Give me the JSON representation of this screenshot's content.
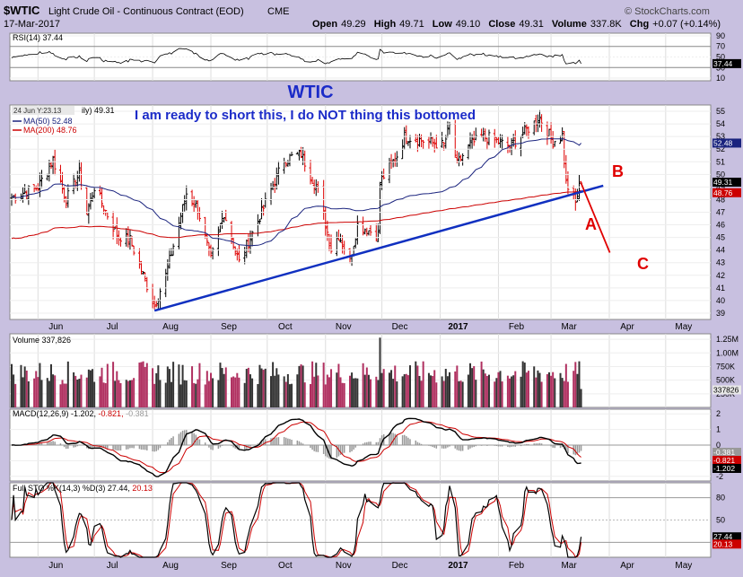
{
  "header": {
    "title": "$WTIC",
    "subtitle": "Light Crude Oil - Continuous Contract (EOD)",
    "exchange": "CME",
    "date": "17-Mar-2017",
    "open_label": "Open",
    "open": "49.29",
    "high_label": "High",
    "high": "49.71",
    "low_label": "Low",
    "low": "49.10",
    "close_label": "Close",
    "close": "49.31",
    "volume_label": "Volume",
    "volume": "337.8K",
    "chg_label": "Chg",
    "chg": "+0.07 (+0.14%)",
    "copyright": "© StockCharts.com"
  },
  "annotations": {
    "chart_title": "WTIC",
    "comment": "I am ready to short this, I do NOT thing this bottomed",
    "wave_a": "A",
    "wave_b": "B",
    "wave_c": "C",
    "hover_info": "24 Jun Y:23.13",
    "hover_tail": "ily) 49.31"
  },
  "colors": {
    "background": "#c8c0e0",
    "panel": "#ffffff",
    "up_bar": "#000000",
    "down_bar": "#dd0000",
    "ma50": "#1a237e",
    "ma200": "#cc0000",
    "trendline": "#1030c0",
    "annotation_text": "#1b2bc8",
    "wave_label": "#e00000",
    "volume_bar": "#b03060"
  },
  "chart_data": [
    {
      "type": "line",
      "panel": "RSI",
      "label": "RSI(14) 37.44",
      "y_ticks": [
        90,
        70,
        50,
        30,
        10
      ],
      "ylim": [
        5,
        95
      ],
      "last_value": "37.44"
    },
    {
      "type": "candlestick",
      "panel": "price",
      "x_ticks": [
        "Jun",
        "Jul",
        "Aug",
        "Sep",
        "Oct",
        "Nov",
        "Dec",
        "2017",
        "Feb",
        "Mar",
        "Apr",
        "May"
      ],
      "y_ticks": [
        55,
        54,
        53,
        52,
        51,
        50,
        49,
        48,
        47,
        46,
        45,
        44,
        43,
        42,
        41,
        40,
        39
      ],
      "ylim": [
        38.5,
        55.5
      ],
      "series": [
        {
          "name": "MA(50)",
          "label": "MA(50) 52.48",
          "last_value": "52.48"
        },
        {
          "name": "MA(200)",
          "label": "MA(200) 48.76",
          "last_value": "48.76"
        }
      ],
      "last_close": "49.31",
      "key_points": [
        {
          "date": "2016-08-02",
          "low": 39.2
        },
        {
          "date": "2016-11-14",
          "low": 42.2
        },
        {
          "date": "2017-01-03",
          "high": 55.2
        },
        {
          "date": "2017-03-14",
          "low": 47.1
        },
        {
          "date": "2017-03-17",
          "close": 49.31
        }
      ],
      "trendline": {
        "from": {
          "date": "2016-08-02",
          "price": 39.2
        },
        "to": {
          "date": "2017-03-24",
          "price": 49.1
        }
      },
      "projection": {
        "from_price": 49.3,
        "to_price": 43.8
      }
    },
    {
      "type": "bar",
      "panel": "volume",
      "label": "Volume 337,826",
      "y_ticks": [
        "1.25M",
        "1.00M",
        "750K",
        "500K",
        "250K"
      ],
      "last_value": "337826",
      "last_value_label": "337826"
    },
    {
      "type": "line",
      "panel": "MACD",
      "label_prefix": "MACD(12,26,9)",
      "values": [
        "-1.202",
        "-0.821",
        "-0.381"
      ],
      "y_ticks": [
        2,
        1,
        0,
        -1,
        -2
      ],
      "ylim": [
        -2.3,
        2.3
      ],
      "tags": [
        "-0.381",
        "-0.821",
        "-1.202"
      ]
    },
    {
      "type": "line",
      "panel": "Full STO",
      "label_prefix": "Full STO %K(14,3) %D(3)",
      "values": [
        "27.44",
        "20.13"
      ],
      "y_ticks": [
        80,
        50,
        20
      ],
      "ylim": [
        0,
        100
      ],
      "tags": [
        "27.44",
        "20.13"
      ]
    }
  ]
}
